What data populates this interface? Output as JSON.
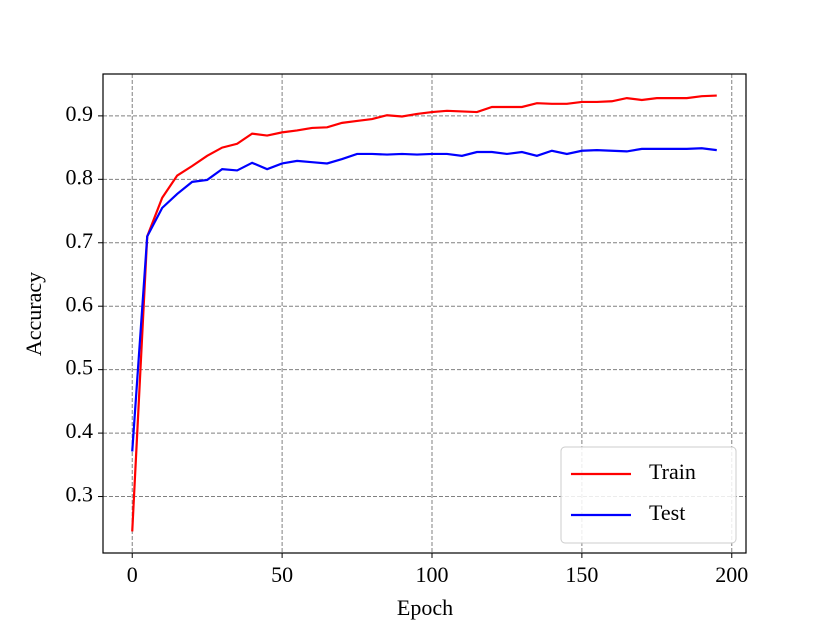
{
  "chart_data": {
    "type": "line",
    "x_label": "Epoch",
    "y_label": "Accuracy",
    "x": [
      0,
      5,
      10,
      15,
      20,
      25,
      30,
      35,
      40,
      45,
      50,
      55,
      60,
      65,
      70,
      75,
      80,
      85,
      90,
      95,
      100,
      105,
      110,
      115,
      120,
      125,
      130,
      135,
      140,
      145,
      150,
      155,
      160,
      165,
      170,
      175,
      180,
      185,
      190,
      195
    ],
    "series": [
      {
        "name": "Train",
        "color": "#ff0000",
        "values": [
          0.245,
          0.71,
          0.771,
          0.806,
          0.821,
          0.837,
          0.85,
          0.856,
          0.872,
          0.869,
          0.874,
          0.877,
          0.881,
          0.882,
          0.889,
          0.892,
          0.895,
          0.901,
          0.899,
          0.903,
          0.906,
          0.908,
          0.907,
          0.906,
          0.914,
          0.914,
          0.914,
          0.92,
          0.919,
          0.919,
          0.922,
          0.922,
          0.923,
          0.928,
          0.925,
          0.928,
          0.928,
          0.928,
          0.931,
          0.932
        ]
      },
      {
        "name": "Test",
        "color": "#0000ff",
        "values": [
          0.371,
          0.71,
          0.755,
          0.777,
          0.796,
          0.799,
          0.816,
          0.814,
          0.826,
          0.816,
          0.825,
          0.829,
          0.827,
          0.825,
          0.832,
          0.84,
          0.84,
          0.839,
          0.84,
          0.839,
          0.84,
          0.84,
          0.837,
          0.843,
          0.843,
          0.84,
          0.843,
          0.837,
          0.845,
          0.84,
          0.845,
          0.846,
          0.845,
          0.844,
          0.848,
          0.848,
          0.848,
          0.848,
          0.849,
          0.846
        ]
      }
    ],
    "xlim": [
      -9.75,
      204.75
    ],
    "xticks": [
      0,
      50,
      100,
      150,
      200
    ],
    "ylim": [
      0.211,
      0.966
    ],
    "yticks": [
      0.3,
      0.4,
      0.5,
      0.6,
      0.7,
      0.8,
      0.9
    ],
    "grid": true,
    "legend": "lower right"
  }
}
